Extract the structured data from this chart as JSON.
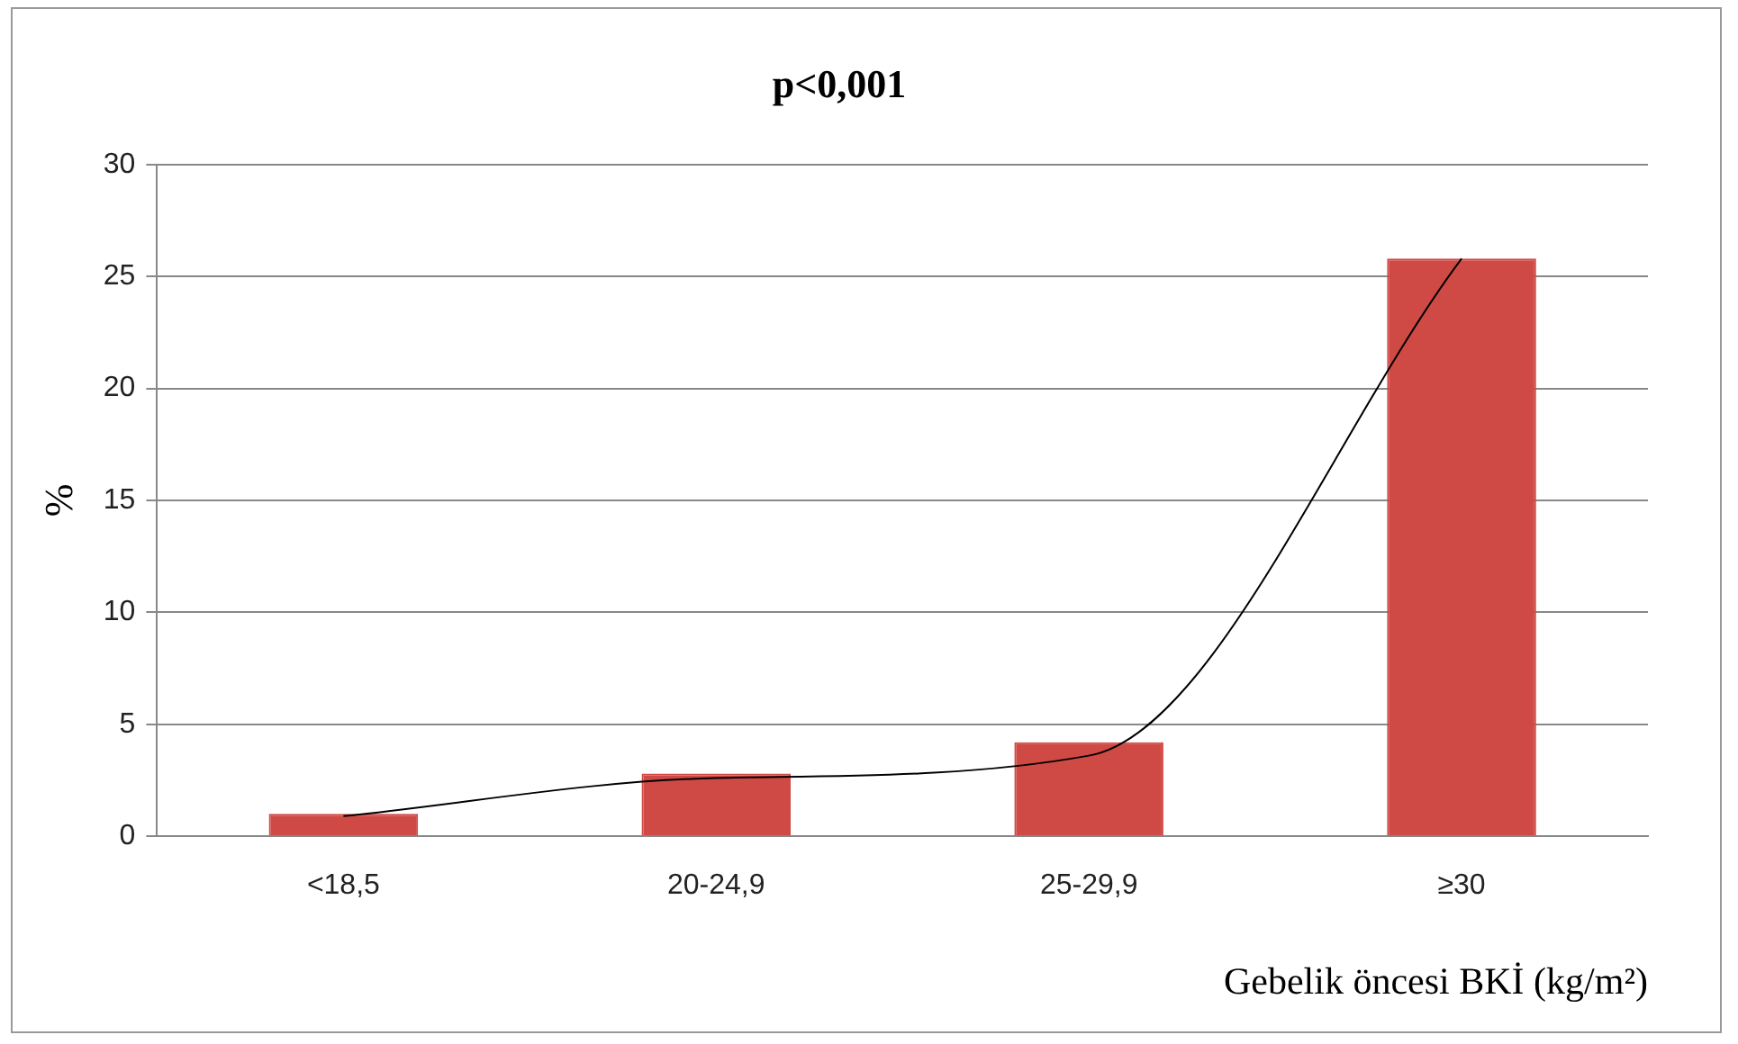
{
  "chart_data": {
    "type": "bar",
    "title": "p<0,001",
    "xlabel": "Gebelik öncesi BKİ (kg/m²)",
    "ylabel": "%",
    "categories": [
      "<18,5",
      "20-24,9",
      "25-29,9",
      "≥30"
    ],
    "series": [
      {
        "color": "#d04a45",
        "values": [
          1.0,
          2.8,
          4.2,
          25.8
        ]
      },
      {
        "type": "line",
        "color": "#000000",
        "x": [
          "<18,5",
          "20-24,9",
          "25-29,9",
          "≥30"
        ],
        "values": [
          0.9,
          2.6,
          3.6,
          25.8
        ]
      }
    ],
    "ylim": [
      0,
      30
    ],
    "yticks": [
      0,
      5,
      10,
      15,
      20,
      25,
      30
    ],
    "grid": "y",
    "legend": false,
    "marker": "none"
  }
}
